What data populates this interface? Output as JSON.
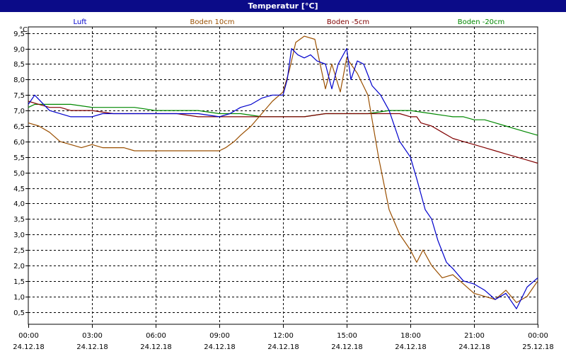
{
  "window": {
    "title": "Temperatur [°C]"
  },
  "chart_data": {
    "type": "line",
    "title": "Temperatur [°C]",
    "y_unit": "°C",
    "ylim": [
      0.1,
      9.7
    ],
    "y_ticks": [
      "0,5",
      "1,0",
      "1,5",
      "2,0",
      "2,5",
      "3,0",
      "3,5",
      "4,0",
      "4,5",
      "5,0",
      "5,5",
      "6,0",
      "6,5",
      "7,0",
      "7,5",
      "8,0",
      "8,5",
      "9,0",
      "9,5"
    ],
    "x_ticks": [
      {
        "time": "00:00",
        "date": "24.12.18"
      },
      {
        "time": "03:00",
        "date": "24.12.18"
      },
      {
        "time": "06:00",
        "date": "24.12.18"
      },
      {
        "time": "09:00",
        "date": "24.12.18"
      },
      {
        "time": "12:00",
        "date": "24.12.18"
      },
      {
        "time": "15:00",
        "date": "24.12.18"
      },
      {
        "time": "18:00",
        "date": "24.12.18"
      },
      {
        "time": "21:00",
        "date": "24.12.18"
      },
      {
        "time": "00:00",
        "date": "25.12.18"
      }
    ],
    "grid": true,
    "legend_position": "top",
    "series": [
      {
        "name": "Luft",
        "color": "#0000cc",
        "x": [
          0,
          0.3,
          1,
          2,
          2.5,
          3,
          3.5,
          4,
          5,
          6,
          7,
          8,
          9,
          9.5,
          10,
          10.5,
          11,
          11.5,
          12,
          12.2,
          12.4,
          12.7,
          13,
          13.3,
          13.6,
          14,
          14.3,
          14.6,
          15,
          15.2,
          15.5,
          15.8,
          16.2,
          16.6,
          17,
          17.5,
          18,
          18.3,
          18.7,
          19,
          19.3,
          19.7,
          20,
          20.5,
          21,
          21.5,
          22,
          22.5,
          23,
          23.5,
          24
        ],
        "y": [
          7.2,
          7.5,
          7.0,
          6.8,
          6.8,
          6.8,
          6.9,
          6.9,
          6.9,
          6.9,
          6.9,
          6.9,
          6.8,
          6.9,
          7.1,
          7.2,
          7.4,
          7.5,
          7.5,
          8.0,
          9.0,
          8.8,
          8.7,
          8.8,
          8.6,
          8.5,
          7.7,
          8.5,
          9.0,
          8.0,
          8.6,
          8.5,
          7.8,
          7.5,
          7.0,
          6.0,
          5.5,
          4.8,
          3.8,
          3.5,
          2.8,
          2.1,
          1.9,
          1.5,
          1.4,
          1.2,
          0.9,
          1.1,
          0.6,
          1.3,
          1.6
        ]
      },
      {
        "name": "Boden 10cm",
        "color": "#9a4f00",
        "x": [
          0,
          0.5,
          1,
          1.5,
          2,
          2.5,
          3,
          3.5,
          4,
          4.5,
          5,
          5.5,
          6,
          7,
          8,
          9,
          9.3,
          9.7,
          10,
          10.5,
          11,
          11.5,
          12,
          12.3,
          12.6,
          13,
          13.5,
          14,
          14.3,
          14.7,
          15,
          15.5,
          16,
          16.5,
          17,
          17.5,
          18,
          18.3,
          18.6,
          19,
          19.5,
          20,
          20.5,
          21,
          21.5,
          22,
          22.5,
          23,
          23.5,
          24
        ],
        "y": [
          6.6,
          6.5,
          6.3,
          6.0,
          5.9,
          5.8,
          5.9,
          5.8,
          5.8,
          5.8,
          5.7,
          5.7,
          5.7,
          5.7,
          5.7,
          5.7,
          5.8,
          6.0,
          6.2,
          6.5,
          6.9,
          7.3,
          7.6,
          8.3,
          9.2,
          9.4,
          9.3,
          7.7,
          8.5,
          7.6,
          8.7,
          8.2,
          7.5,
          5.5,
          3.8,
          3.0,
          2.5,
          2.1,
          2.5,
          2.0,
          1.6,
          1.7,
          1.4,
          1.1,
          1.0,
          0.9,
          1.2,
          0.8,
          1.0,
          1.5
        ]
      },
      {
        "name": "Boden -5cm",
        "color": "#800000",
        "x": [
          0,
          0.5,
          1,
          1.5,
          2,
          3,
          4,
          5,
          6,
          7,
          8,
          9,
          10,
          11,
          12,
          13,
          14,
          15,
          16,
          17,
          17.5,
          18,
          18.3,
          18.5,
          19,
          19.5,
          20,
          20.5,
          21,
          21.5,
          22,
          22.5,
          23,
          23.5,
          24
        ],
        "y": [
          7.3,
          7.2,
          7.1,
          7.1,
          7.0,
          7.0,
          6.9,
          6.9,
          6.9,
          6.9,
          6.8,
          6.8,
          6.8,
          6.8,
          6.8,
          6.8,
          6.9,
          6.9,
          6.9,
          6.9,
          6.9,
          6.8,
          6.8,
          6.6,
          6.5,
          6.3,
          6.1,
          6.0,
          5.9,
          5.8,
          5.7,
          5.6,
          5.5,
          5.4,
          5.3
        ]
      },
      {
        "name": "Boden -20cm",
        "color": "#008800",
        "x": [
          0,
          0.3,
          1,
          2,
          3,
          4,
          5,
          6,
          7,
          8,
          9,
          10,
          11,
          12,
          13,
          14,
          15,
          16,
          17,
          18,
          19,
          20,
          20.5,
          21,
          21.5,
          22,
          22.5,
          23,
          23.5,
          24
        ],
        "y": [
          7.1,
          7.2,
          7.2,
          7.2,
          7.1,
          7.1,
          7.1,
          7.0,
          7.0,
          7.0,
          6.9,
          6.9,
          6.8,
          6.8,
          6.8,
          6.9,
          6.9,
          6.9,
          7.0,
          7.0,
          6.9,
          6.8,
          6.8,
          6.7,
          6.7,
          6.6,
          6.5,
          6.4,
          6.3,
          6.2
        ]
      }
    ]
  }
}
